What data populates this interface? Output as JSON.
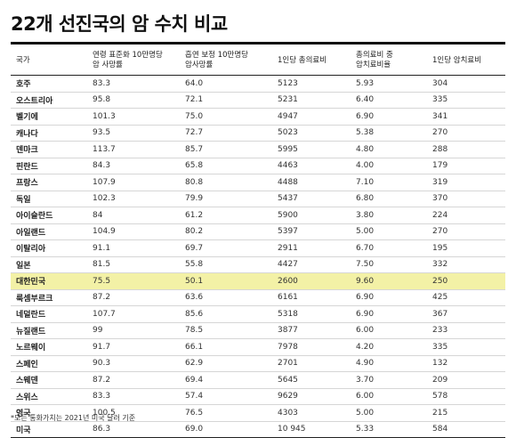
{
  "title": "22개 선진국의 암 수치 비교",
  "headers": [
    "국가",
    "연령 표준화 10만명당\n암 사망률",
    "흡연 보정 10만명당\n암사망률",
    "1인당 총의료비",
    "총의료비 중\n암치료비율",
    "1인당 암치료비"
  ],
  "rows": [
    [
      "호주",
      "83.3",
      "64.0",
      "5123",
      "5.93",
      "304"
    ],
    [
      "오스트리아",
      "95.8",
      "72.1",
      "5231",
      "6.40",
      "335"
    ],
    [
      "벨기에",
      "101.3",
      "75.0",
      "4947",
      "6.90",
      "341"
    ],
    [
      "캐나다",
      "93.5",
      "72.7",
      "5023",
      "5.38",
      "270"
    ],
    [
      "덴마크",
      "113.7",
      "85.7",
      "5995",
      "4.80",
      "288"
    ],
    [
      "핀란드",
      "84.3",
      "65.8",
      "4463",
      "4.00",
      "179"
    ],
    [
      "프랑스",
      "107.9",
      "80.8",
      "4488",
      "7.10",
      "319"
    ],
    [
      "독일",
      "102.3",
      "79.9",
      "5437",
      "6.80",
      "370"
    ],
    [
      "아이슬란드",
      "84",
      "61.2",
      "5900",
      "3.80",
      "224"
    ],
    [
      "아일랜드",
      "104.9",
      "80.2",
      "5397",
      "5.00",
      "270"
    ],
    [
      "이탈리아",
      "91.1",
      "69.7",
      "2911",
      "6.70",
      "195"
    ],
    [
      "일본",
      "81.5",
      "55.8",
      "4427",
      "7.50",
      "332"
    ],
    [
      "대한민국",
      "75.5",
      "50.1",
      "2600",
      "9.60",
      "250"
    ],
    [
      "룩셈부르크",
      "87.2",
      "63.6",
      "6161",
      "6.90",
      "425"
    ],
    [
      "네덜란드",
      "107.7",
      "85.6",
      "5318",
      "6.90",
      "367"
    ],
    [
      "뉴질랜드",
      "99",
      "78.5",
      "3877",
      "6.00",
      "233"
    ],
    [
      "노르웨이",
      "91.7",
      "66.1",
      "7978",
      "4.20",
      "335"
    ],
    [
      "스페인",
      "90.3",
      "62.9",
      "2701",
      "4.90",
      "132"
    ],
    [
      "스웨덴",
      "87.2",
      "69.4",
      "5645",
      "3.70",
      "209"
    ],
    [
      "스위스",
      "83.3",
      "57.4",
      "9629",
      "6.00",
      "578"
    ],
    [
      "영국",
      "100.5",
      "76.5",
      "4303",
      "5.00",
      "215"
    ],
    [
      "미국",
      "86.3",
      "69.0",
      "10 945",
      "5.33",
      "584"
    ]
  ],
  "highlight_row": 12,
  "highlight_color": "#f3f1a6",
  "footnote": "*모든 통화가치는 2021년 미국 달러 기준"
}
